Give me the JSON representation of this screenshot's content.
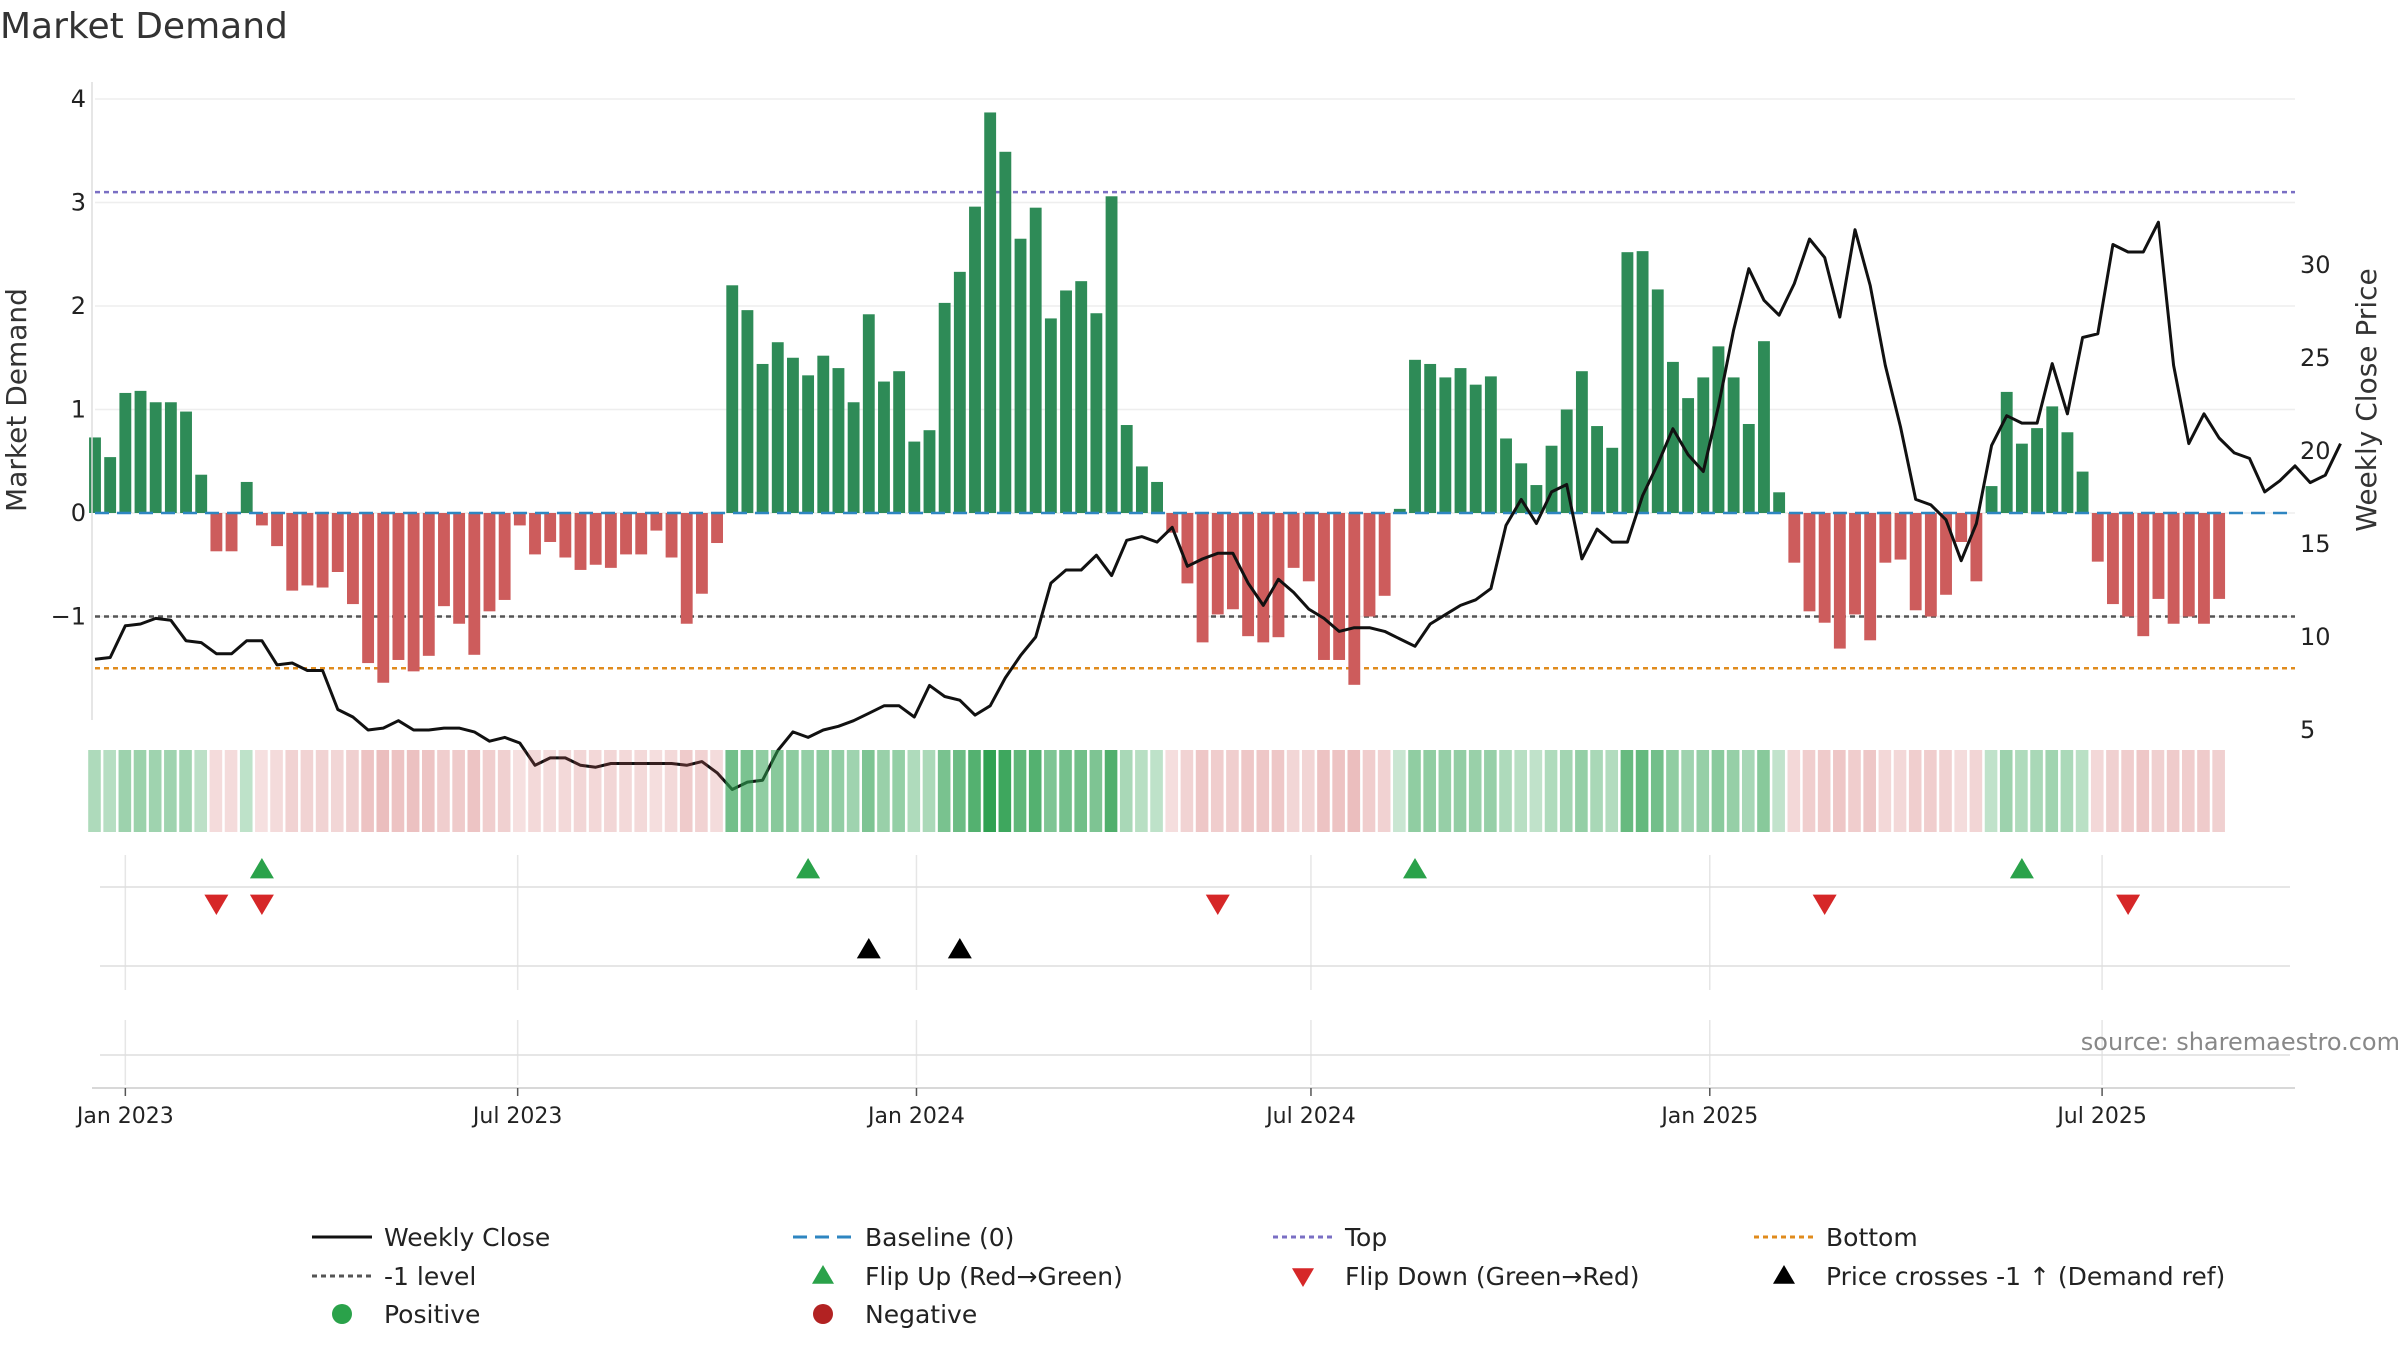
{
  "chart_data": {
    "type": "bar",
    "title": "Market Demand",
    "ylabel": "Market Demand",
    "y2label": "Weekly Close Price",
    "source": "source: sharemaestro.com",
    "ylim": [
      -1.7,
      4.0
    ],
    "y2lim": [
      0,
      34
    ],
    "yticks": [
      -1,
      0,
      1,
      2,
      3,
      4
    ],
    "yticklabels": [
      "−1",
      "0",
      "1",
      "2",
      "3",
      "4"
    ],
    "y2ticks": [
      5,
      10,
      15,
      20,
      25,
      30
    ],
    "y2ticklabels": [
      "5",
      "10",
      "15",
      "20",
      "25",
      "30"
    ],
    "x_start": "2022-12-18",
    "x_end": "2025-09-28",
    "x_ticks": [
      {
        "date": "2023-01-01",
        "label": "Jan 2023"
      },
      {
        "date": "2023-07-01",
        "label": "Jul 2023"
      },
      {
        "date": "2024-01-01",
        "label": "Jan 2024"
      },
      {
        "date": "2024-07-01",
        "label": "Jul 2024"
      },
      {
        "date": "2025-01-01",
        "label": "Jan 2025"
      },
      {
        "date": "2025-07-01",
        "label": "Jul 2025"
      }
    ],
    "reference_lines": {
      "top": 3.1,
      "bottom": -1.5,
      "minus_one": -1,
      "baseline": 0
    },
    "first_week": "2022-12-18",
    "demand": [
      0.73,
      0.54,
      1.16,
      1.18,
      1.07,
      1.07,
      0.98,
      0.37,
      -0.37,
      -0.37,
      0.3,
      -0.12,
      -0.32,
      -0.75,
      -0.7,
      -0.72,
      -0.57,
      -0.88,
      -1.45,
      -1.64,
      -1.42,
      -1.53,
      -1.38,
      -0.9,
      -1.07,
      -1.37,
      -0.95,
      -0.84,
      -0.12,
      -0.4,
      -0.28,
      -0.43,
      -0.55,
      -0.5,
      -0.53,
      -0.4,
      -0.4,
      -0.17,
      -0.43,
      -1.07,
      -0.78,
      -0.29,
      2.2,
      1.96,
      1.44,
      1.65,
      1.5,
      1.33,
      1.52,
      1.4,
      1.07,
      1.92,
      1.27,
      1.37,
      0.69,
      0.8,
      2.03,
      2.33,
      2.96,
      3.87,
      3.49,
      2.65,
      2.95,
      1.88,
      2.15,
      2.24,
      1.93,
      3.06,
      0.85,
      0.45,
      0.3,
      -0.19,
      -0.68,
      -1.25,
      -0.98,
      -0.93,
      -1.19,
      -1.25,
      -1.2,
      -0.53,
      -0.66,
      -1.42,
      -1.42,
      -1.66,
      -1.0,
      -0.8,
      0.04,
      1.48,
      1.44,
      1.31,
      1.4,
      1.24,
      1.32,
      0.72,
      0.48,
      0.27,
      0.65,
      1.0,
      1.37,
      0.84,
      0.63,
      2.52,
      2.53,
      2.16,
      1.46,
      1.11,
      1.31,
      1.61,
      1.31,
      0.86,
      1.66,
      0.2,
      -0.48,
      -0.95,
      -1.06,
      -1.31,
      -0.98,
      -1.23,
      -0.48,
      -0.45,
      -0.94,
      -1.0,
      -0.79,
      -0.28,
      -0.66,
      0.26,
      1.17,
      0.67,
      0.82,
      1.03,
      0.78,
      0.4,
      -0.47,
      -0.88,
      -1.0,
      -1.19,
      -0.83,
      -1.07,
      -1.0,
      -1.07,
      -0.83
    ],
    "weekly_close": [
      8.8,
      8.9,
      10.6,
      10.7,
      11.0,
      10.9,
      9.8,
      9.7,
      9.1,
      9.1,
      9.8,
      9.8,
      8.5,
      8.6,
      8.2,
      8.2,
      6.1,
      5.7,
      5.0,
      5.1,
      5.5,
      5.0,
      5.0,
      5.1,
      5.1,
      4.9,
      4.4,
      4.6,
      4.3,
      3.1,
      3.5,
      3.5,
      3.1,
      3.0,
      3.2,
      3.2,
      3.2,
      3.2,
      3.2,
      3.1,
      3.3,
      2.7,
      1.8,
      2.2,
      2.3,
      3.9,
      4.9,
      4.6,
      5.0,
      5.2,
      5.5,
      5.9,
      6.3,
      6.3,
      5.7,
      7.4,
      6.8,
      6.6,
      5.8,
      6.3,
      7.8,
      9.0,
      10.0,
      12.9,
      13.6,
      13.6,
      14.4,
      13.3,
      15.2,
      15.4,
      15.1,
      15.9,
      13.8,
      14.2,
      14.5,
      14.5,
      12.9,
      11.7,
      13.1,
      12.4,
      11.5,
      11.0,
      10.3,
      10.5,
      10.5,
      10.3,
      9.9,
      9.5,
      10.7,
      11.2,
      11.7,
      12.0,
      12.6,
      16.0,
      17.4,
      16.1,
      17.8,
      18.2,
      14.2,
      15.8,
      15.1,
      15.1,
      17.6,
      19.3,
      21.2,
      19.8,
      18.9,
      22.4,
      26.5,
      29.8,
      28.1,
      27.3,
      29.0,
      31.4,
      30.4,
      27.2,
      31.9,
      28.9,
      24.6,
      21.3,
      17.4,
      17.1,
      16.3,
      14.1,
      16.1,
      20.3,
      21.9,
      21.5,
      21.5,
      24.7,
      22.0,
      26.1,
      26.3,
      31.1,
      30.7,
      30.7,
      32.3,
      24.6,
      20.4,
      22.0,
      20.7,
      19.9,
      19.6,
      17.8,
      18.4,
      19.2,
      18.3,
      18.7,
      20.4
    ],
    "flip_up": [
      "2023-03-05",
      "2023-11-12",
      "2024-08-18",
      "2025-05-25"
    ],
    "flip_down": [
      "2023-02-12",
      "2023-03-05",
      "2024-05-19",
      "2025-02-23",
      "2025-07-13"
    ],
    "price_cross": [
      "2023-12-10",
      "2024-01-21"
    ],
    "legend": [
      {
        "key": "close",
        "label": "Weekly Close",
        "color": "#111111"
      },
      {
        "key": "baseline",
        "label": "Baseline (0)",
        "color": "#2e86c1"
      },
      {
        "key": "top",
        "label": "Top",
        "color": "#7a6fc4"
      },
      {
        "key": "bottom",
        "label": "Bottom",
        "color": "#e08b1c"
      },
      {
        "key": "minus_one",
        "label": "-1 level",
        "color": "#555555"
      },
      {
        "key": "flip_up",
        "label": "Flip Up (Red→Green)",
        "color": "#2aa24a"
      },
      {
        "key": "flip_down",
        "label": "Flip Down (Green→Red)",
        "color": "#d62728"
      },
      {
        "key": "cross",
        "label": "Price crosses -1 ↑ (Demand ref)",
        "color": "#000000"
      },
      {
        "key": "positive",
        "label": "Positive",
        "color": "#2aa24a"
      },
      {
        "key": "negative",
        "label": "Negative",
        "color": "#b22222"
      }
    ],
    "colors": {
      "positive_bar": "#2e8b57",
      "negative_bar": "#cd5c5c",
      "close_line": "#111111",
      "baseline": "#2e86c1",
      "top": "#7a6fc4",
      "bottom": "#e08b1c",
      "minus_one": "#555555"
    },
    "grid": true,
    "legend_position": "bottom"
  }
}
